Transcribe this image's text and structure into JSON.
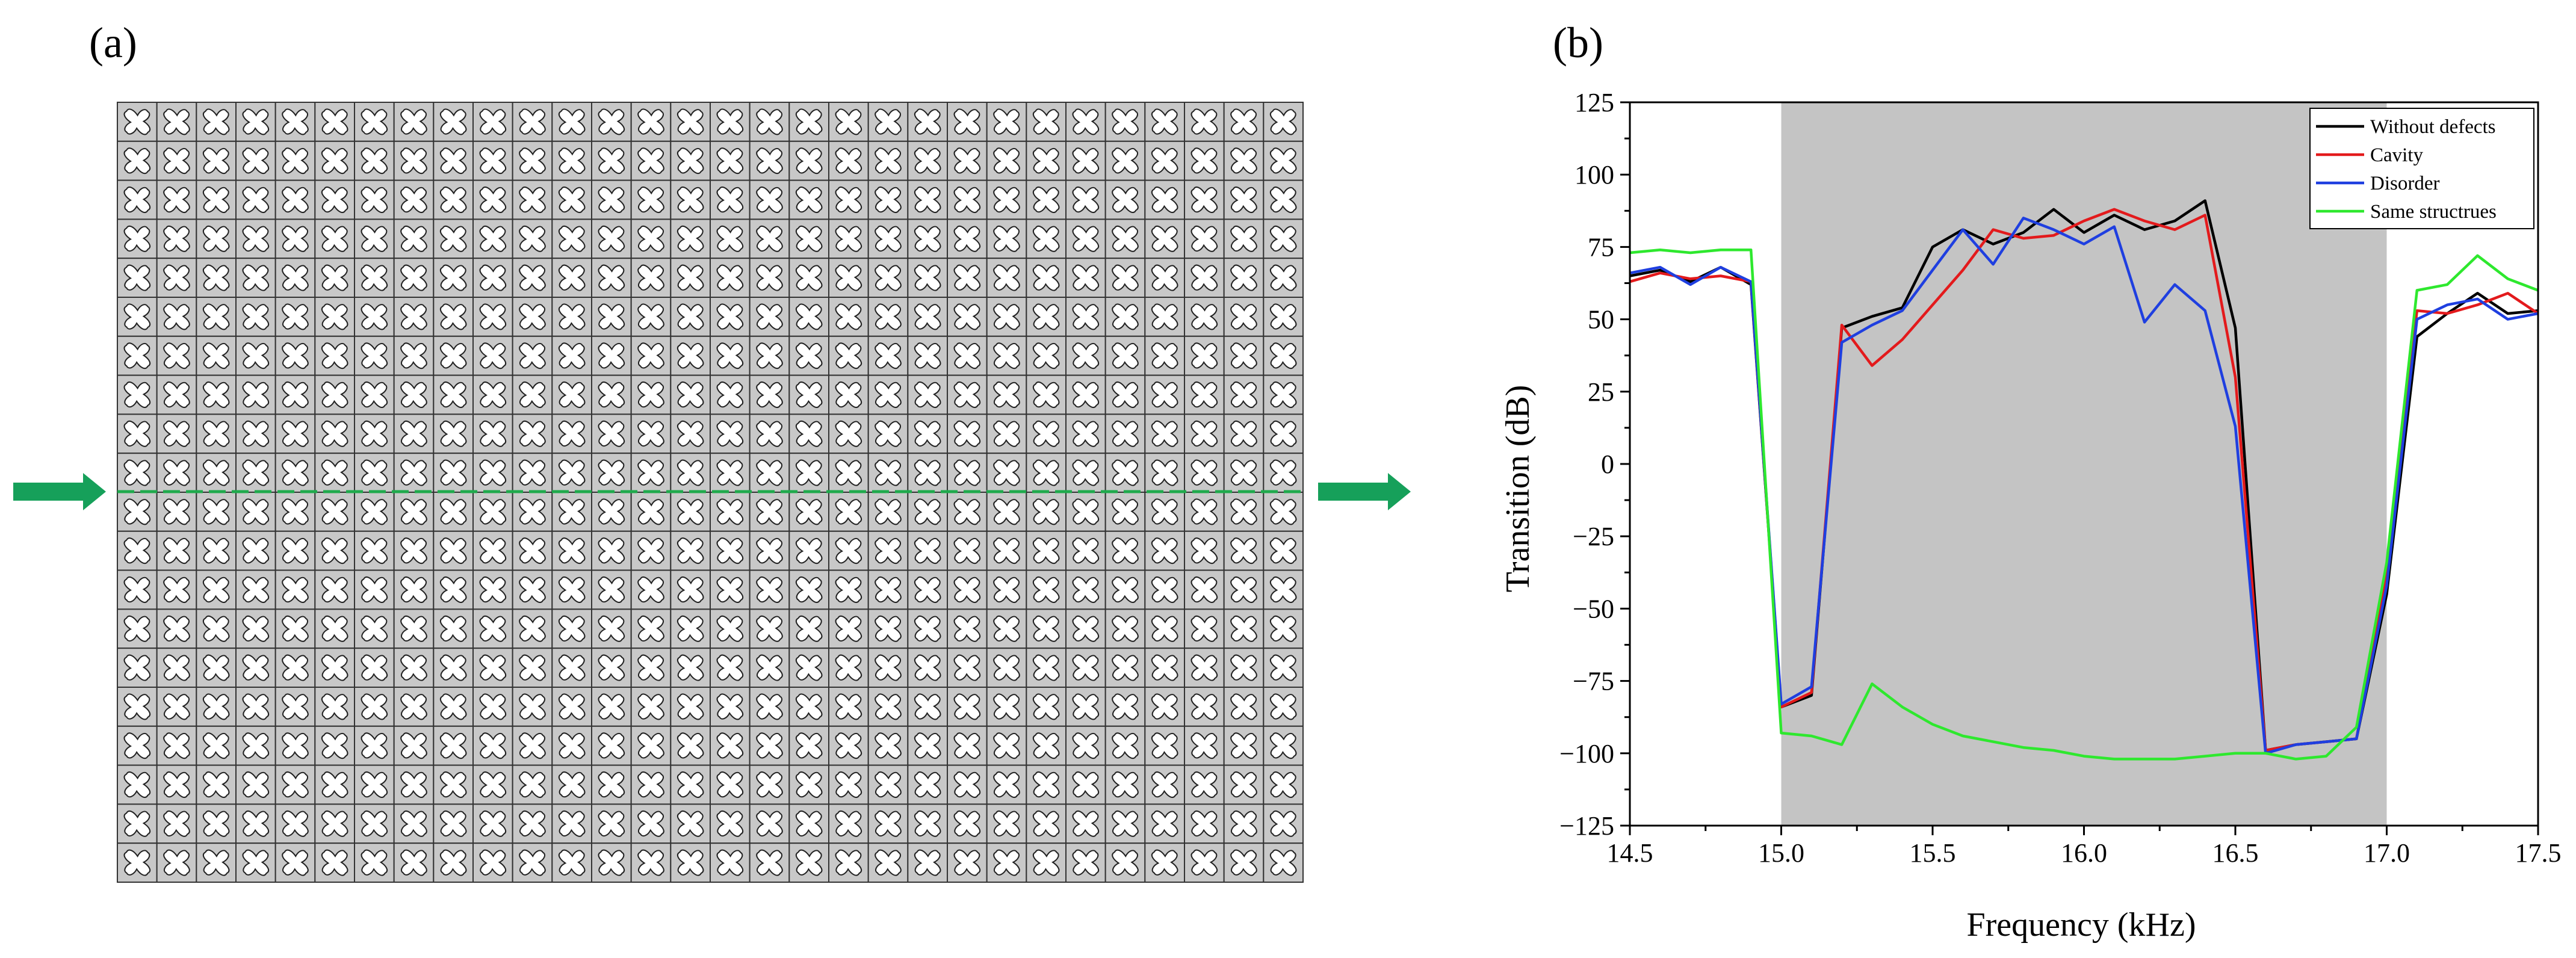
{
  "panel_a": {
    "label": "(a)",
    "lattice": {
      "columns": 30,
      "rows": 20,
      "cell_fill": "#c8c8c8",
      "inclusion_fill": "#ffffff"
    },
    "waveguide_color": "#1faa4c",
    "arrow_color": "#16a05a",
    "arrows": [
      "input-arrow",
      "output-arrow"
    ]
  },
  "panel_b": {
    "label": "(b)"
  },
  "chart_data": {
    "type": "line",
    "title": "",
    "xlabel": "Frequency (kHz)",
    "ylabel": "Transition (dB)",
    "xlim": [
      14.5,
      17.5
    ],
    "ylim": [
      -125,
      125
    ],
    "xticks": [
      14.5,
      15.0,
      15.5,
      16.0,
      16.5,
      17.0,
      17.5
    ],
    "xtick_labels": [
      "14.5",
      "15.0",
      "15.5",
      "16.0",
      "16.5",
      "17.0",
      "17.5"
    ],
    "yticks": [
      -125,
      -100,
      -75,
      -50,
      -25,
      0,
      25,
      50,
      75,
      100,
      125
    ],
    "ytick_labels": [
      "−125",
      "−100",
      "−75",
      "−50",
      "−25",
      "0",
      "25",
      "50",
      "75",
      "100",
      "125"
    ],
    "grid": false,
    "legend_position": "top-right",
    "band_gap": {
      "x_range": [
        15.0,
        17.0
      ],
      "color": "#c4c4c4"
    },
    "series": [
      {
        "name": "Without defects",
        "color": "#000000",
        "x": [
          14.5,
          14.6,
          14.7,
          14.8,
          14.9,
          15.0,
          15.1,
          15.2,
          15.3,
          15.4,
          15.5,
          15.6,
          15.7,
          15.8,
          15.9,
          16.0,
          16.1,
          16.2,
          16.3,
          16.4,
          16.5,
          16.6,
          16.7,
          16.8,
          16.9,
          17.0,
          17.1,
          17.2,
          17.3,
          17.4,
          17.5
        ],
        "y": [
          65,
          67,
          63,
          68,
          62,
          -84,
          -80,
          47,
          51,
          54,
          75,
          81,
          76,
          80,
          88,
          80,
          86,
          81,
          84,
          91,
          47,
          -99,
          -97,
          -96,
          -95,
          -45,
          44,
          52,
          59,
          52,
          53
        ]
      },
      {
        "name": "Cavity",
        "color": "#e31a1c",
        "x": [
          14.5,
          14.6,
          14.7,
          14.8,
          14.9,
          15.0,
          15.1,
          15.2,
          15.3,
          15.4,
          15.5,
          15.6,
          15.7,
          15.8,
          15.9,
          16.0,
          16.1,
          16.2,
          16.3,
          16.4,
          16.5,
          16.6,
          16.7,
          16.8,
          16.9,
          17.0,
          17.1,
          17.2,
          17.3,
          17.4,
          17.5
        ],
        "y": [
          63,
          66,
          64,
          65,
          63,
          -84,
          -79,
          48,
          34,
          43,
          55,
          67,
          81,
          78,
          79,
          84,
          88,
          84,
          81,
          86,
          30,
          -99,
          -97,
          -96,
          -95,
          -38,
          53,
          52,
          55,
          59,
          52
        ]
      },
      {
        "name": "Disorder",
        "color": "#1f3fe0",
        "x": [
          14.5,
          14.6,
          14.7,
          14.8,
          14.9,
          15.0,
          15.1,
          15.2,
          15.3,
          15.4,
          15.5,
          15.6,
          15.7,
          15.8,
          15.9,
          16.0,
          16.1,
          16.2,
          16.3,
          16.4,
          16.5,
          16.6,
          16.7,
          16.8,
          16.9,
          17.0,
          17.1,
          17.2,
          17.3,
          17.4,
          17.5
        ],
        "y": [
          66,
          68,
          62,
          68,
          63,
          -83,
          -77,
          42,
          48,
          53,
          67,
          81,
          69,
          85,
          81,
          76,
          82,
          49,
          62,
          53,
          13,
          -100,
          -97,
          -96,
          -95,
          -42,
          50,
          55,
          57,
          50,
          52
        ]
      },
      {
        "name": "Same structrues",
        "color": "#2ee82e",
        "x": [
          14.5,
          14.6,
          14.7,
          14.8,
          14.9,
          15.0,
          15.1,
          15.2,
          15.3,
          15.4,
          15.5,
          15.6,
          15.7,
          15.8,
          15.9,
          16.0,
          16.1,
          16.2,
          16.3,
          16.4,
          16.5,
          16.6,
          16.7,
          16.8,
          16.9,
          17.0,
          17.1,
          17.2,
          17.3,
          17.4,
          17.5
        ],
        "y": [
          73,
          74,
          73,
          74,
          74,
          -93,
          -94,
          -97,
          -76,
          -84,
          -90,
          -94,
          -96,
          -98,
          -99,
          -101,
          -102,
          -102,
          -102,
          -101,
          -100,
          -100,
          -102,
          -101,
          -91,
          -34,
          60,
          62,
          72,
          64,
          60
        ]
      }
    ]
  }
}
